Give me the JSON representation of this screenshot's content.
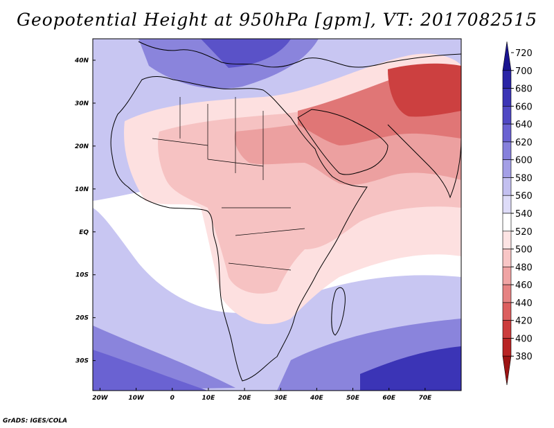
{
  "title": "Geopotential Height at 950hPa [gpm], VT: 2017082515",
  "credit": "GrADS: IGES/COLA",
  "map": {
    "lat_labels": [
      {
        "lat": 40,
        "label": "40N"
      },
      {
        "lat": 30,
        "label": "30N"
      },
      {
        "lat": 20,
        "label": "20N"
      },
      {
        "lat": 10,
        "label": "10N"
      },
      {
        "lat": 0,
        "label": "EQ"
      },
      {
        "lat": -10,
        "label": "10S"
      },
      {
        "lat": -20,
        "label": "20S"
      },
      {
        "lat": -30,
        "label": "30S"
      }
    ],
    "lon_labels": [
      {
        "lon": -20,
        "label": "20W"
      },
      {
        "lon": -10,
        "label": "10W"
      },
      {
        "lon": 0,
        "label": "0"
      },
      {
        "lon": 10,
        "label": "10E"
      },
      {
        "lon": 20,
        "label": "20E"
      },
      {
        "lon": 30,
        "label": "30E"
      },
      {
        "lon": 40,
        "label": "40E"
      },
      {
        "lon": 50,
        "label": "50E"
      },
      {
        "lon": 60,
        "label": "60E"
      },
      {
        "lon": 70,
        "label": "70E"
      }
    ],
    "lon_range": [
      -22,
      80
    ],
    "lat_range": [
      -37,
      45
    ]
  },
  "colorbar": {
    "levels": [
      "720",
      "700",
      "680",
      "660",
      "640",
      "620",
      "600",
      "580",
      "560",
      "540",
      "520",
      "500",
      "480",
      "460",
      "440",
      "420",
      "400",
      "380"
    ],
    "colors": [
      "#1a1490",
      "#2a24a6",
      "#3b34b6",
      "#5048c4",
      "#6a62d2",
      "#8680dc",
      "#a49fe6",
      "#c3c0f0",
      "#dedcf8",
      "#ffffff",
      "#fde4e4",
      "#f8c6c6",
      "#f0a4a4",
      "#e68282",
      "#dc5e5e",
      "#cc3c3c",
      "#b82424",
      "#9c1414"
    ]
  }
}
